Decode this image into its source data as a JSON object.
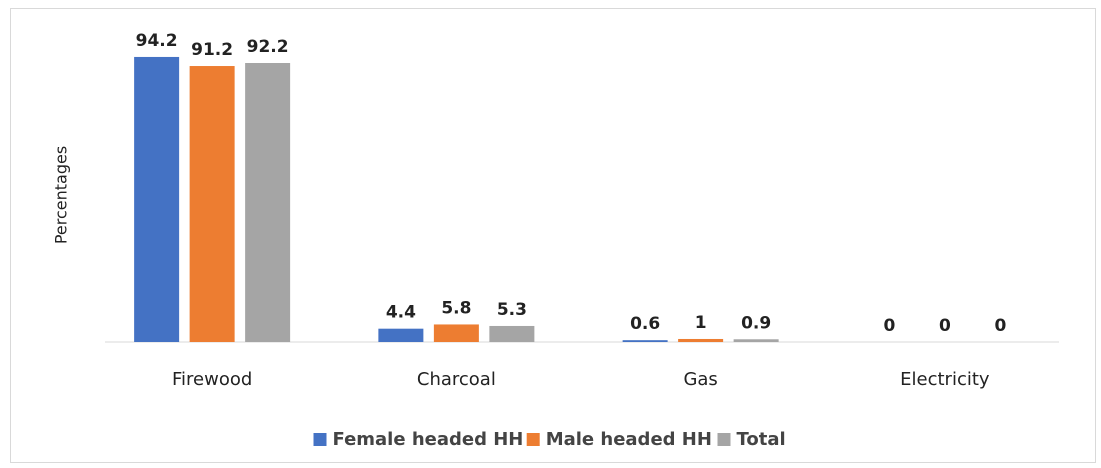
{
  "chart_data": {
    "type": "bar",
    "y_label": "Percentages",
    "categories": [
      "Firewood",
      "Charcoal",
      "Gas",
      "Electricity"
    ],
    "series": [
      {
        "name": "Female headed HH",
        "color": "#4472c4",
        "values": [
          94.2,
          4.4,
          0.6,
          0
        ]
      },
      {
        "name": "Male headed HH",
        "color": "#ed7d31",
        "values": [
          91.2,
          5.8,
          1,
          0
        ]
      },
      {
        "name": "Total",
        "color": "#a5a5a5",
        "values": [
          92.2,
          5.3,
          0.9,
          0
        ]
      }
    ],
    "ylim": [
      0,
      100
    ],
    "legend": "bottom"
  }
}
